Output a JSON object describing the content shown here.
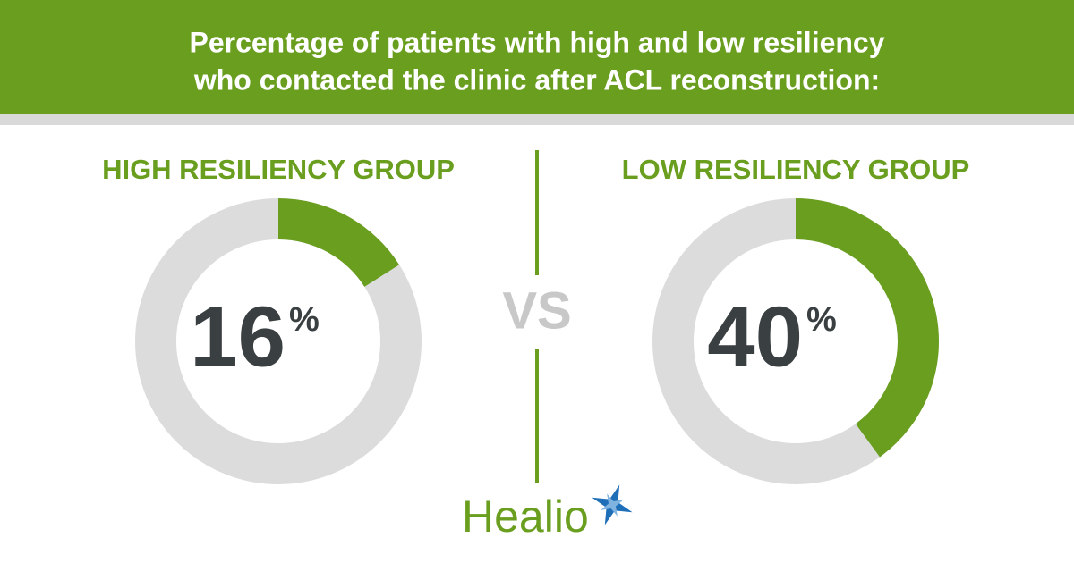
{
  "title": [
    "Percentage of patients with high and low resiliency",
    "who contacted the clinic after ACL reconstruction:"
  ],
  "separator": "VS",
  "logo": "Healio",
  "chart_data": [
    {
      "type": "donut",
      "title": "HIGH RESILIENCY GROUP",
      "values": [
        16
      ],
      "value_labels": [
        "16"
      ],
      "unit": "%",
      "color": "#6a9e1f",
      "track_color": "#dcdcdc"
    },
    {
      "type": "donut",
      "title": "LOW RESILIENCY GROUP",
      "values": [
        40
      ],
      "value_labels": [
        "40"
      ],
      "unit": "%",
      "color": "#6a9e1f",
      "track_color": "#dcdcdc"
    }
  ]
}
